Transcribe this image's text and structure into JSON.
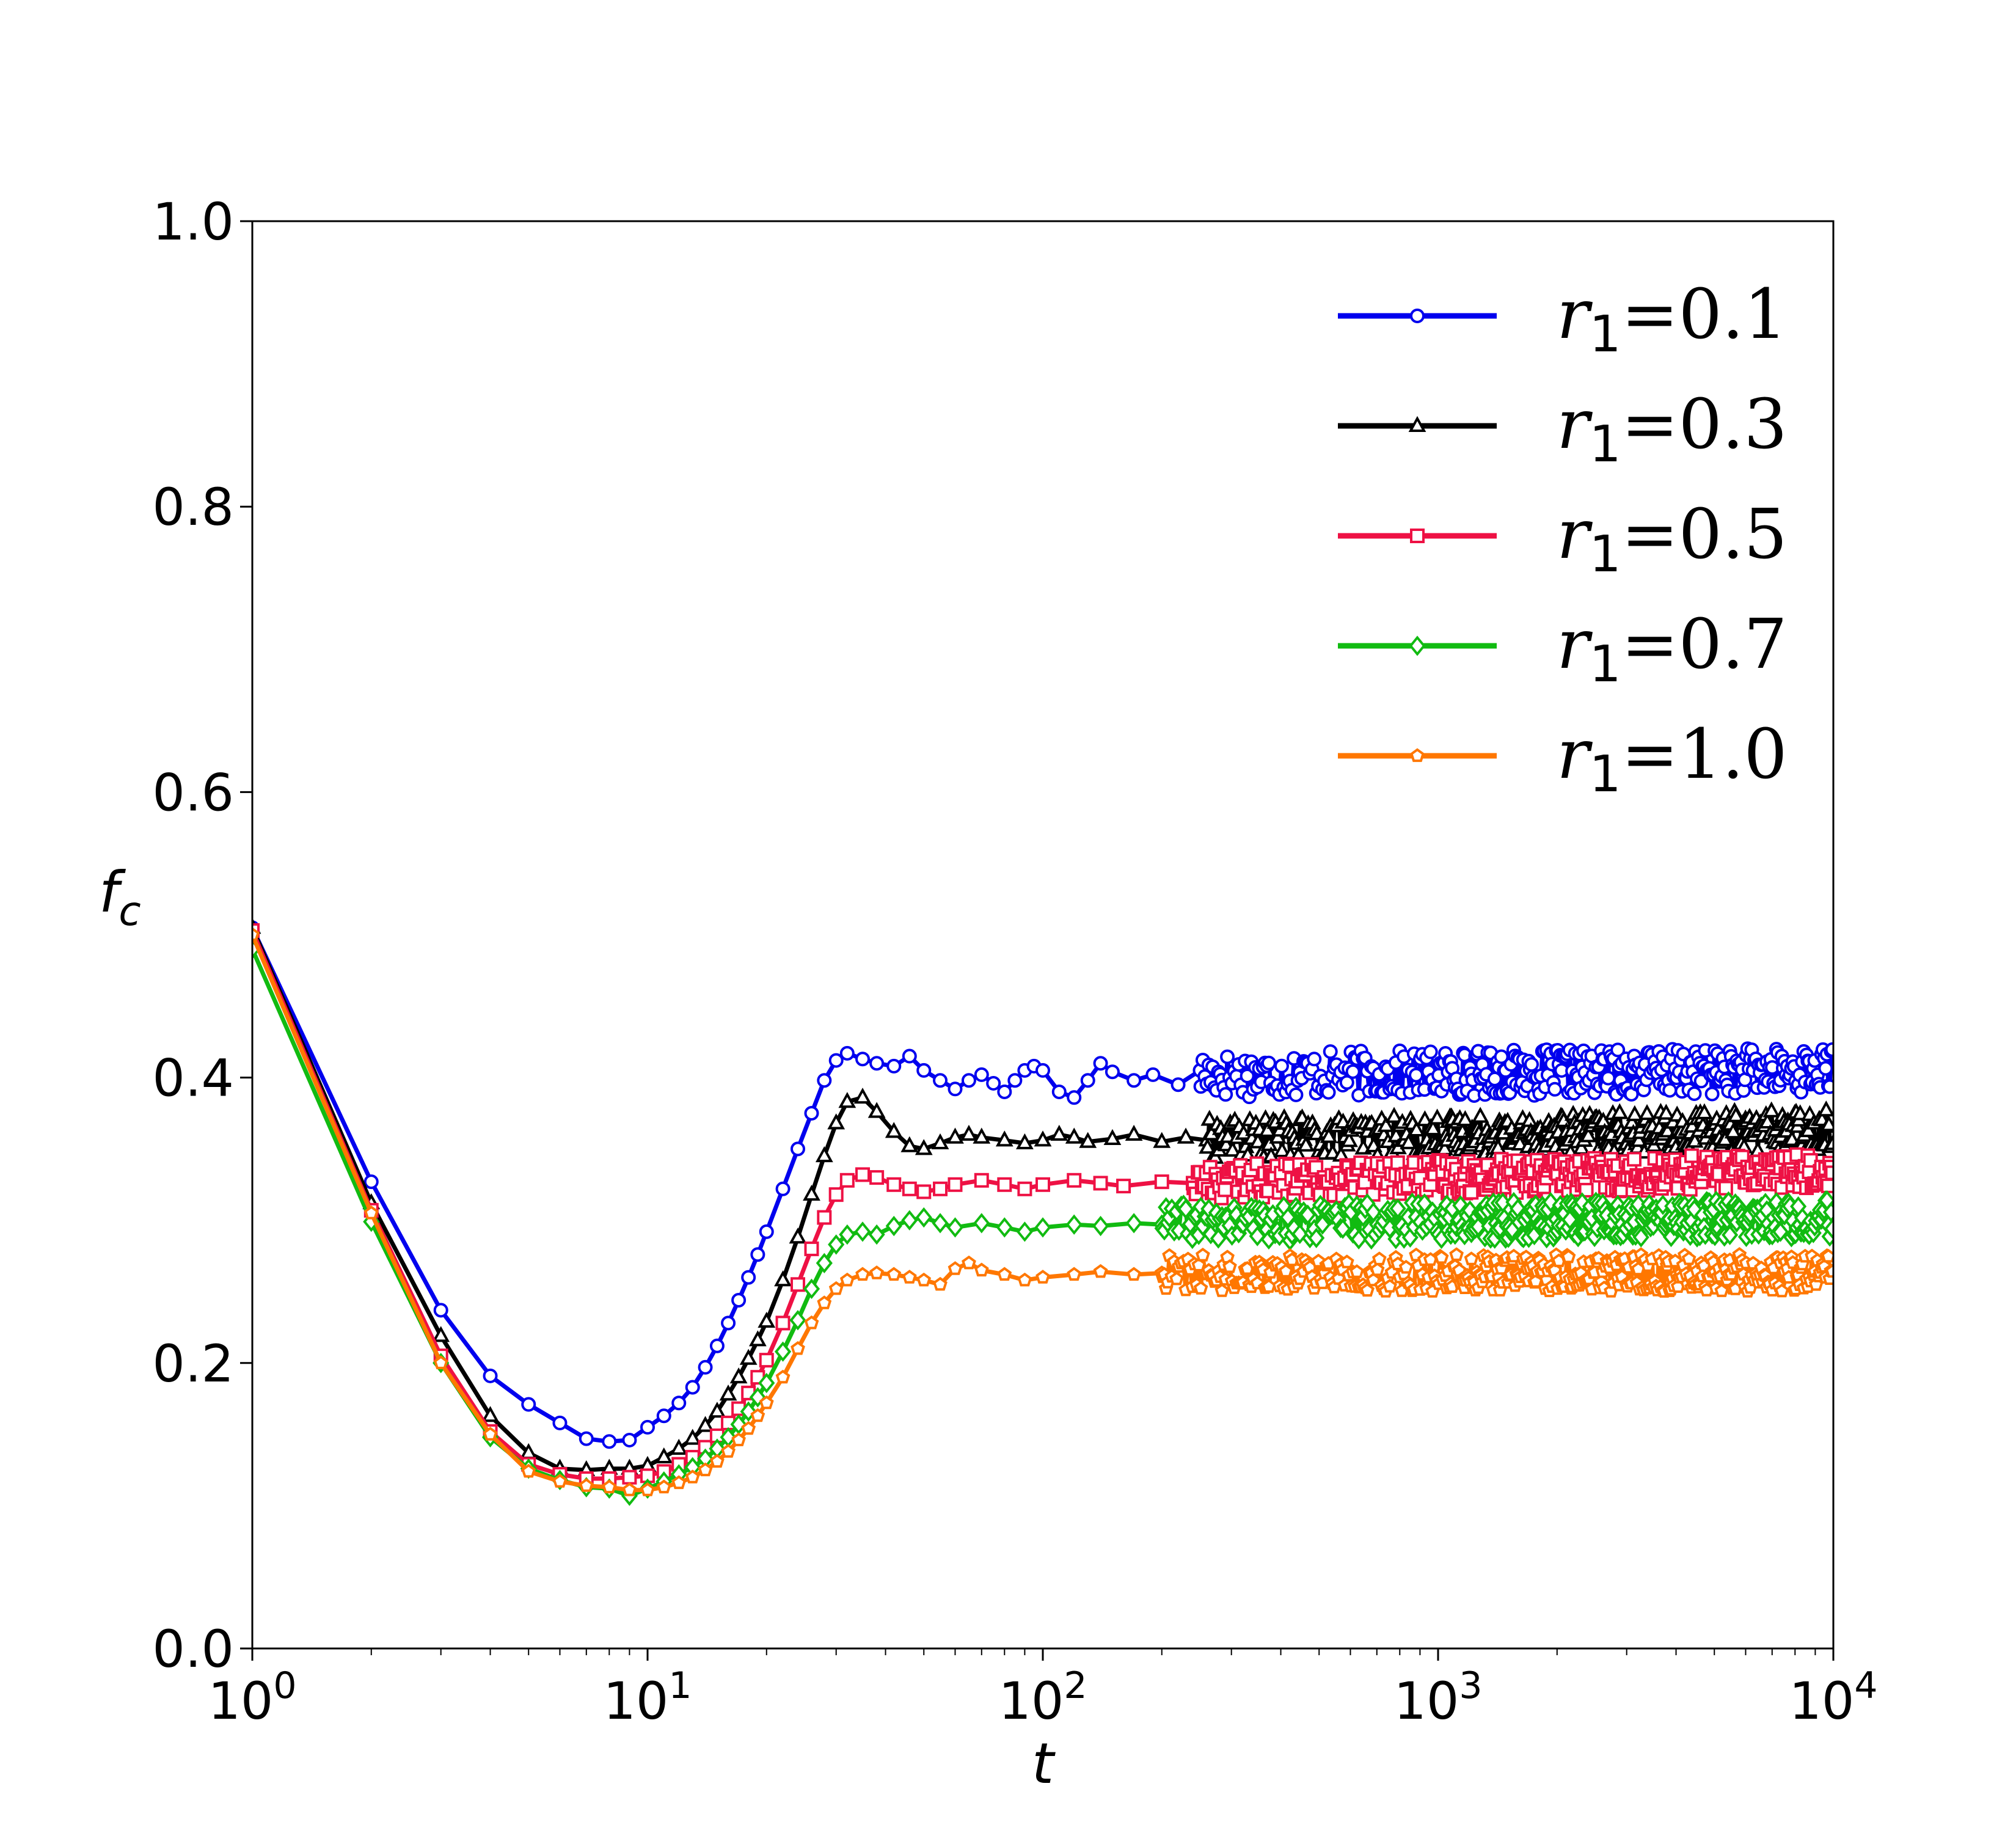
{
  "chart_data": {
    "type": "line",
    "title": "",
    "xlabel": "t",
    "ylabel_main": "f",
    "ylabel_sub": "c",
    "xscale": "log",
    "xlim": [
      1,
      10000
    ],
    "ylim": [
      0.0,
      1.0
    ],
    "grid": false,
    "legend_position": "top-right",
    "x_ticks": [
      {
        "value": 1,
        "base": "10",
        "exp": "0"
      },
      {
        "value": 10,
        "base": "10",
        "exp": "1"
      },
      {
        "value": 100,
        "base": "10",
        "exp": "2"
      },
      {
        "value": 1000,
        "base": "10",
        "exp": "3"
      },
      {
        "value": 10000,
        "base": "10",
        "exp": "4"
      }
    ],
    "y_ticks": [
      {
        "value": 0.0,
        "label": "0.0"
      },
      {
        "value": 0.2,
        "label": "0.2"
      },
      {
        "value": 0.4,
        "label": "0.4"
      },
      {
        "value": 0.6,
        "label": "0.6"
      },
      {
        "value": 0.8,
        "label": "0.8"
      },
      {
        "value": 1.0,
        "label": "1.0"
      }
    ],
    "series": [
      {
        "name": "r1=0.1",
        "name_var": "r",
        "name_sub": "1",
        "name_val": "=0.1",
        "color": "#0000ee",
        "marker": "circle",
        "early": [
          [
            1,
            0.505
          ],
          [
            2,
            0.327
          ],
          [
            3,
            0.237
          ],
          [
            4,
            0.191
          ],
          [
            5,
            0.171
          ],
          [
            6,
            0.158
          ],
          [
            7,
            0.147
          ],
          [
            8,
            0.145
          ],
          [
            9,
            0.146
          ],
          [
            10,
            0.155
          ],
          [
            11,
            0.163
          ],
          [
            12,
            0.172
          ],
          [
            13,
            0.183
          ],
          [
            14,
            0.197
          ],
          [
            15,
            0.212
          ],
          [
            16,
            0.228
          ],
          [
            17,
            0.244
          ],
          [
            18,
            0.26
          ],
          [
            19,
            0.276
          ],
          [
            20,
            0.292
          ],
          [
            22,
            0.322
          ],
          [
            24,
            0.35
          ],
          [
            26,
            0.375
          ],
          [
            28,
            0.398
          ],
          [
            30,
            0.412
          ],
          [
            32,
            0.417
          ],
          [
            35,
            0.413
          ],
          [
            38,
            0.41
          ],
          [
            42,
            0.408
          ],
          [
            46,
            0.415
          ],
          [
            50,
            0.405
          ],
          [
            55,
            0.398
          ],
          [
            60,
            0.392
          ],
          [
            65,
            0.398
          ],
          [
            70,
            0.402
          ],
          [
            75,
            0.396
          ],
          [
            80,
            0.39
          ],
          [
            85,
            0.398
          ],
          [
            90,
            0.405
          ],
          [
            95,
            0.408
          ],
          [
            100,
            0.405
          ],
          [
            110,
            0.39
          ],
          [
            120,
            0.386
          ],
          [
            130,
            0.398
          ],
          [
            140,
            0.41
          ],
          [
            150,
            0.404
          ],
          [
            170,
            0.398
          ],
          [
            190,
            0.402
          ],
          [
            220,
            0.395
          ],
          [
            250,
            0.405
          ]
        ],
        "band": {
          "start": 250,
          "center": 0.402,
          "amp": 0.016,
          "slope": 0.0018
        }
      },
      {
        "name": "r1=0.3",
        "name_var": "r",
        "name_sub": "1",
        "name_val": "=0.3",
        "color": "#000000",
        "marker": "triangle",
        "early": [
          [
            1,
            0.505
          ],
          [
            2,
            0.312
          ],
          [
            3,
            0.219
          ],
          [
            4,
            0.163
          ],
          [
            5,
            0.137
          ],
          [
            6,
            0.126
          ],
          [
            7,
            0.125
          ],
          [
            8,
            0.126
          ],
          [
            9,
            0.126
          ],
          [
            10,
            0.128
          ],
          [
            11,
            0.134
          ],
          [
            12,
            0.14
          ],
          [
            13,
            0.147
          ],
          [
            14,
            0.156
          ],
          [
            15,
            0.166
          ],
          [
            16,
            0.178
          ],
          [
            17,
            0.19
          ],
          [
            18,
            0.203
          ],
          [
            19,
            0.216
          ],
          [
            20,
            0.229
          ],
          [
            22,
            0.258
          ],
          [
            24,
            0.288
          ],
          [
            26,
            0.318
          ],
          [
            28,
            0.345
          ],
          [
            30,
            0.368
          ],
          [
            32,
            0.383
          ],
          [
            35,
            0.386
          ],
          [
            38,
            0.376
          ],
          [
            42,
            0.362
          ],
          [
            46,
            0.352
          ],
          [
            50,
            0.35
          ],
          [
            55,
            0.354
          ],
          [
            60,
            0.358
          ],
          [
            65,
            0.36
          ],
          [
            70,
            0.358
          ],
          [
            80,
            0.356
          ],
          [
            90,
            0.354
          ],
          [
            100,
            0.356
          ],
          [
            110,
            0.36
          ],
          [
            120,
            0.358
          ],
          [
            130,
            0.355
          ],
          [
            150,
            0.357
          ],
          [
            170,
            0.36
          ],
          [
            200,
            0.355
          ],
          [
            230,
            0.358
          ],
          [
            260,
            0.356
          ]
        ],
        "band": {
          "start": 260,
          "center": 0.357,
          "amp": 0.014,
          "slope": 0.004
        }
      },
      {
        "name": "r1=0.5",
        "name_var": "r",
        "name_sub": "1",
        "name_val": "=0.5",
        "color": "#ee1144",
        "marker": "square",
        "early": [
          [
            1,
            0.503
          ],
          [
            2,
            0.307
          ],
          [
            3,
            0.205
          ],
          [
            4,
            0.152
          ],
          [
            5,
            0.129
          ],
          [
            6,
            0.122
          ],
          [
            7,
            0.119
          ],
          [
            8,
            0.119
          ],
          [
            9,
            0.12
          ],
          [
            10,
            0.121
          ],
          [
            11,
            0.124
          ],
          [
            12,
            0.129
          ],
          [
            13,
            0.134
          ],
          [
            14,
            0.141
          ],
          [
            15,
            0.149
          ],
          [
            16,
            0.158
          ],
          [
            17,
            0.168
          ],
          [
            18,
            0.179
          ],
          [
            19,
            0.19
          ],
          [
            20,
            0.202
          ],
          [
            22,
            0.228
          ],
          [
            24,
            0.255
          ],
          [
            26,
            0.28
          ],
          [
            28,
            0.302
          ],
          [
            30,
            0.318
          ],
          [
            32,
            0.328
          ],
          [
            35,
            0.332
          ],
          [
            38,
            0.33
          ],
          [
            42,
            0.325
          ],
          [
            46,
            0.322
          ],
          [
            50,
            0.32
          ],
          [
            55,
            0.322
          ],
          [
            60,
            0.325
          ],
          [
            70,
            0.328
          ],
          [
            80,
            0.325
          ],
          [
            90,
            0.322
          ],
          [
            100,
            0.325
          ],
          [
            120,
            0.328
          ],
          [
            140,
            0.326
          ],
          [
            160,
            0.324
          ],
          [
            200,
            0.327
          ],
          [
            240,
            0.326
          ]
        ],
        "band": {
          "start": 240,
          "center": 0.327,
          "amp": 0.012,
          "slope": 0.005
        }
      },
      {
        "name": "r1=0.7",
        "name_var": "r",
        "name_sub": "1",
        "name_val": "=0.7",
        "color": "#11bb11",
        "marker": "diamond",
        "early": [
          [
            1,
            0.49
          ],
          [
            2,
            0.299
          ],
          [
            3,
            0.2
          ],
          [
            4,
            0.148
          ],
          [
            5,
            0.126
          ],
          [
            6,
            0.118
          ],
          [
            7,
            0.113
          ],
          [
            8,
            0.112
          ],
          [
            9,
            0.107
          ],
          [
            10,
            0.112
          ],
          [
            11,
            0.117
          ],
          [
            12,
            0.122
          ],
          [
            13,
            0.127
          ],
          [
            14,
            0.133
          ],
          [
            15,
            0.14
          ],
          [
            16,
            0.148
          ],
          [
            17,
            0.157
          ],
          [
            18,
            0.166
          ],
          [
            19,
            0.176
          ],
          [
            20,
            0.186
          ],
          [
            22,
            0.208
          ],
          [
            24,
            0.23
          ],
          [
            26,
            0.252
          ],
          [
            28,
            0.27
          ],
          [
            30,
            0.283
          ],
          [
            32,
            0.29
          ],
          [
            35,
            0.292
          ],
          [
            38,
            0.29
          ],
          [
            42,
            0.296
          ],
          [
            46,
            0.3
          ],
          [
            50,
            0.302
          ],
          [
            55,
            0.298
          ],
          [
            60,
            0.295
          ],
          [
            70,
            0.298
          ],
          [
            80,
            0.295
          ],
          [
            90,
            0.292
          ],
          [
            100,
            0.295
          ],
          [
            120,
            0.297
          ],
          [
            140,
            0.296
          ],
          [
            170,
            0.298
          ],
          [
            200,
            0.297
          ]
        ],
        "band": {
          "start": 200,
          "center": 0.298,
          "amp": 0.013,
          "slope": 0.002
        }
      },
      {
        "name": "r1=1.0",
        "name_var": "r",
        "name_sub": "1",
        "name_val": "=1.0",
        "color": "#ff7700",
        "marker": "pentagon",
        "early": [
          [
            1,
            0.5
          ],
          [
            2,
            0.305
          ],
          [
            3,
            0.2
          ],
          [
            4,
            0.15
          ],
          [
            5,
            0.124
          ],
          [
            6,
            0.117
          ],
          [
            7,
            0.114
          ],
          [
            8,
            0.113
          ],
          [
            9,
            0.111
          ],
          [
            10,
            0.111
          ],
          [
            11,
            0.113
          ],
          [
            12,
            0.116
          ],
          [
            13,
            0.12
          ],
          [
            14,
            0.125
          ],
          [
            15,
            0.131
          ],
          [
            16,
            0.138
          ],
          [
            17,
            0.146
          ],
          [
            18,
            0.154
          ],
          [
            19,
            0.163
          ],
          [
            20,
            0.172
          ],
          [
            22,
            0.19
          ],
          [
            24,
            0.21
          ],
          [
            26,
            0.228
          ],
          [
            28,
            0.242
          ],
          [
            30,
            0.252
          ],
          [
            32,
            0.258
          ],
          [
            35,
            0.262
          ],
          [
            38,
            0.263
          ],
          [
            42,
            0.262
          ],
          [
            46,
            0.26
          ],
          [
            50,
            0.258
          ],
          [
            55,
            0.255
          ],
          [
            60,
            0.266
          ],
          [
            65,
            0.27
          ],
          [
            70,
            0.265
          ],
          [
            80,
            0.262
          ],
          [
            90,
            0.258
          ],
          [
            100,
            0.26
          ],
          [
            120,
            0.262
          ],
          [
            140,
            0.264
          ],
          [
            170,
            0.262
          ],
          [
            200,
            0.263
          ]
        ],
        "band": {
          "start": 200,
          "center": 0.263,
          "amp": 0.013,
          "slope": 0.0
        }
      }
    ]
  }
}
